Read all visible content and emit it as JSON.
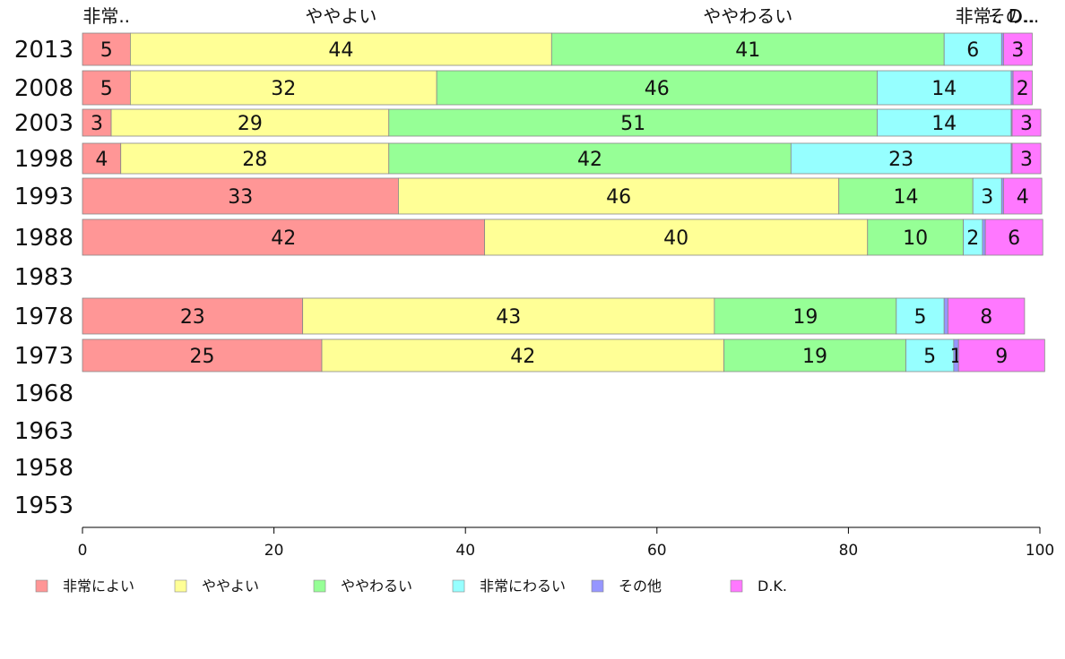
{
  "chart_data": {
    "type": "bar",
    "orientation": "horizontal",
    "stacked": true,
    "categories": [
      "2013",
      "2008",
      "2003",
      "1998",
      "1993",
      "1988",
      "1983",
      "1978",
      "1973",
      "1968",
      "1963",
      "1958",
      "1953"
    ],
    "series": [
      {
        "name": "非常によい",
        "color": "#ff9696",
        "values": [
          5,
          5,
          3,
          4,
          33,
          42,
          null,
          23,
          25,
          null,
          null,
          null,
          null
        ]
      },
      {
        "name": "ややよい",
        "color": "#ffff96",
        "values": [
          44,
          32,
          29,
          28,
          46,
          40,
          null,
          43,
          42,
          null,
          null,
          null,
          null
        ]
      },
      {
        "name": "ややわるい",
        "color": "#96ff96",
        "values": [
          41,
          46,
          51,
          42,
          14,
          10,
          null,
          19,
          19,
          null,
          null,
          null,
          null
        ]
      },
      {
        "name": "非常にわるい",
        "color": "#96ffff",
        "values": [
          6,
          14,
          14,
          23,
          3,
          2,
          null,
          5,
          5,
          null,
          null,
          null,
          null
        ]
      },
      {
        "name": "その他",
        "color": "#9696ff",
        "values": [
          0.2,
          0.2,
          0.1,
          0.1,
          0.2,
          0.3,
          null,
          0.4,
          0.5,
          null,
          null,
          null,
          null
        ]
      },
      {
        "name": "D.K.",
        "color": "#ff78ff",
        "values": [
          3,
          2,
          3,
          3,
          4,
          6,
          null,
          8,
          9,
          null,
          null,
          null,
          null
        ]
      }
    ],
    "segment_labels": [
      [
        "5",
        "44",
        "41",
        "6",
        "",
        "3"
      ],
      [
        "5",
        "32",
        "46",
        "14",
        "",
        "2"
      ],
      [
        "3",
        "29",
        "51",
        "14",
        "",
        "3"
      ],
      [
        "4",
        "28",
        "42",
        "23",
        "",
        "3"
      ],
      [
        "33",
        "46",
        "14",
        "3",
        "",
        "4"
      ],
      [
        "42",
        "40",
        "10",
        "2",
        "",
        "6"
      ],
      [
        "",
        "",
        "",
        "",
        "",
        ""
      ],
      [
        "23",
        "43",
        "19",
        "5",
        "",
        "8"
      ],
      [
        "25",
        "42",
        "19",
        "5",
        "1",
        "9"
      ],
      [
        "",
        "",
        "",
        "",
        "",
        ""
      ],
      [
        "",
        "",
        "",
        "",
        "",
        ""
      ],
      [
        "",
        "",
        "",
        "",
        "",
        ""
      ],
      [
        "",
        "",
        "",
        "",
        "",
        ""
      ]
    ],
    "top_labels": [
      "非常..",
      "ややよい",
      "ややわるい",
      "非常..",
      "その..",
      "D..."
    ],
    "xlim": [
      0,
      100
    ],
    "xticks": [
      "0",
      "20",
      "40",
      "60",
      "80",
      "100"
    ],
    "grid": false,
    "legend_position": "bottom",
    "legend": [
      "非常によい",
      "ややよい",
      "ややわるい",
      "非常にわるい",
      "その他",
      "D.K."
    ]
  }
}
